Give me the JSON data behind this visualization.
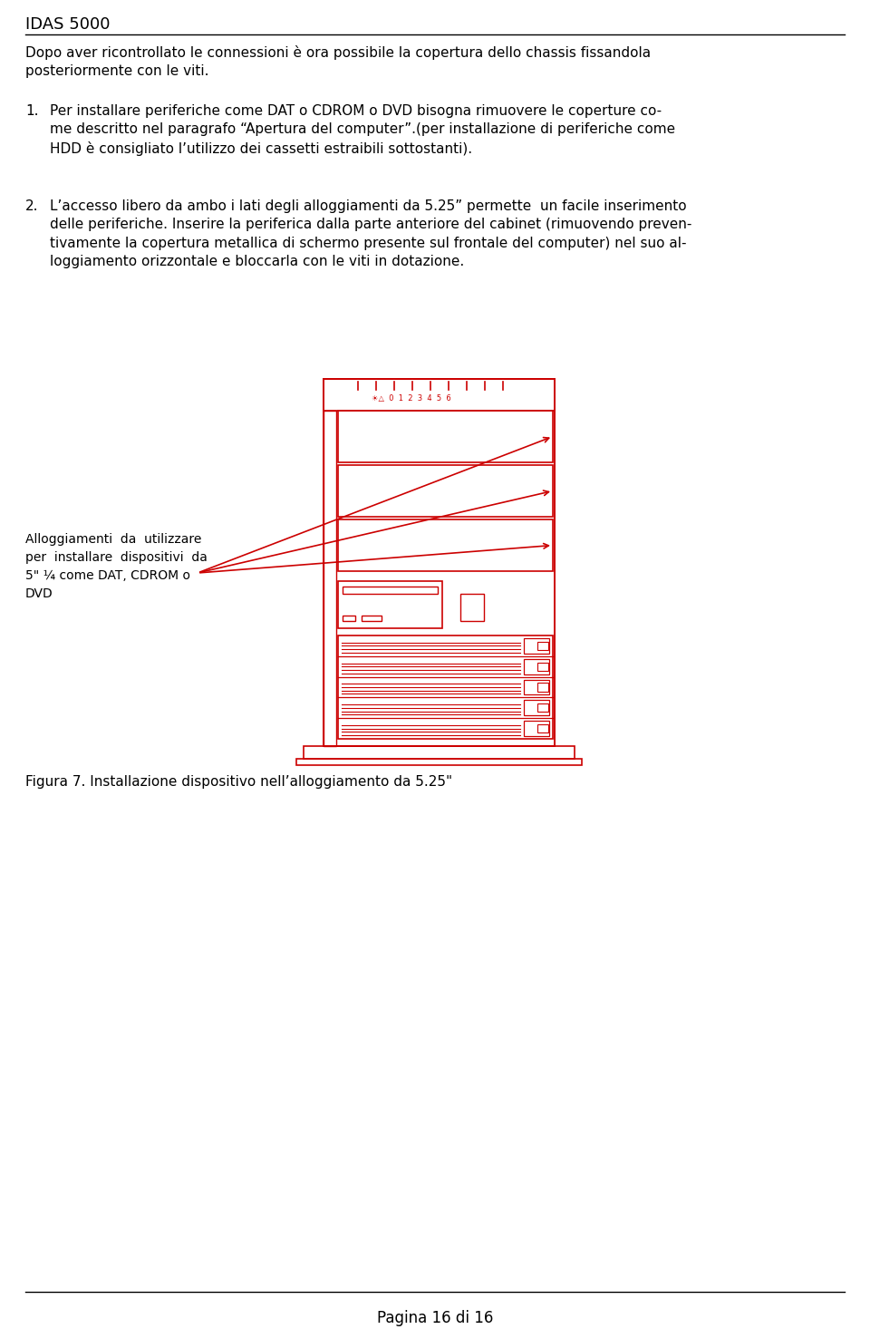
{
  "title": "IDAS 5000",
  "red_color": "#CC0000",
  "text_color": "#000000",
  "bg_color": "#FFFFFF",
  "page_footer": "Pagina 16 di 16",
  "para0": "Dopo aver ricontrollato le connessioni è ora possibile la copertura dello chassis fissandola\nposteriormente con le viti.",
  "para1_num": "1.",
  "para1_text": "Per installare periferiche come DAT o CDROM o DVD bisogna rimuovere le coperture co-\nme descritto nel paragrafo “Apertura del computer”.(per installazione di periferiche come\nHDD è consigliato l’utilizzo dei cassetti estraibili sottostanti).",
  "para2_num": "2.",
  "para2_text": "L’accesso libero da ambo i lati degli alloggiamenti da 5.25” permette  un facile inserimento\ndelle periferiche. Inserire la periferica dalla parte anteriore del cabinet (rimuovendo preven-\ntivamente la copertura metallica di schermo presente sul frontale del computer) nel suo al-\nloggiamento orizzontale e bloccarla con le viti in dotazione.",
  "label_text": "Alloggiamenti  da  utilizzare\nper  installare  dispositivi  da\n5\" ¼ come DAT, CDROM o\nDVD",
  "figure_caption": "Figura 7. Installazione dispositivo nell’alloggiamento da 5.25\""
}
